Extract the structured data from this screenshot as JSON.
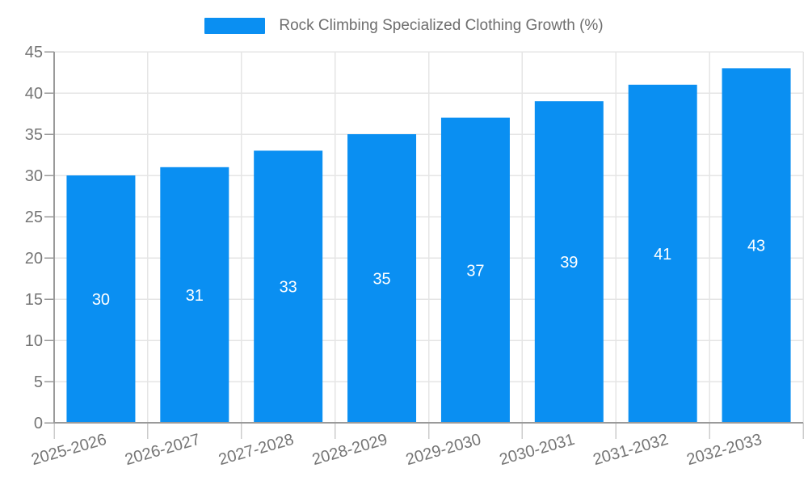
{
  "chart_data": {
    "type": "bar",
    "title": "Rock Climbing Specialized Clothing Growth (%)",
    "categories": [
      "2025-2026",
      "2026-2027",
      "2027-2028",
      "2028-2029",
      "2029-2030",
      "2030-2031",
      "2031-2032",
      "2032-2033"
    ],
    "values": [
      30,
      31,
      33,
      35,
      37,
      39,
      41,
      43
    ],
    "xlabel": "",
    "ylabel": "",
    "ylim": [
      0,
      45
    ],
    "ytick_step": 5,
    "yticks": [
      0,
      5,
      10,
      15,
      20,
      25,
      30,
      35,
      40,
      45
    ],
    "grid": true,
    "legend_position": "top-center",
    "value_labels": "inside-center",
    "colors": {
      "bar": "#0A8FF2",
      "grid_line": "#e5e5e5",
      "axis_line": "#9a9a9a",
      "x_tick_line": "#cccccc",
      "y_tick_line": "#999999",
      "tick_label": "#757575",
      "value_label": "#ffffff",
      "legend_text": "#6e6e6e"
    }
  }
}
